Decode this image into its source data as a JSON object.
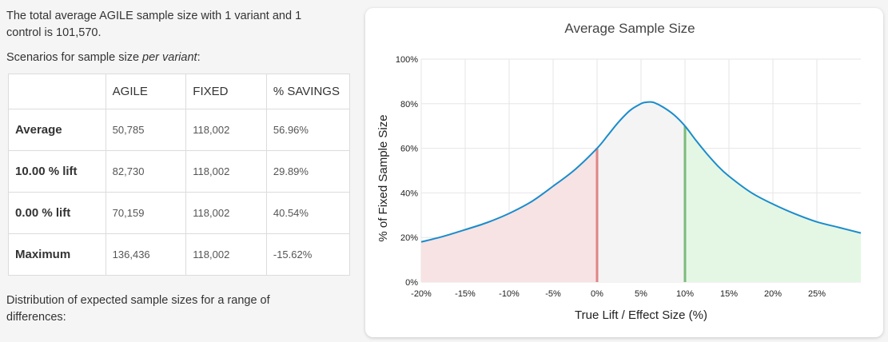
{
  "summary": {
    "text": "The total average AGILE sample size with 1 variant and 1 control is 101,570.",
    "scenarios_prefix": "Scenarios for sample size ",
    "scenarios_em": "per variant",
    "scenarios_suffix": ":"
  },
  "table": {
    "headers": [
      "",
      "AGILE",
      "FIXED",
      "% SAVINGS"
    ],
    "rows": [
      {
        "label": "Average",
        "agile": "50,785",
        "fixed": "118,002",
        "savings": "56.96%"
      },
      {
        "label": "10.00 % lift",
        "agile": "82,730",
        "fixed": "118,002",
        "savings": "29.89%"
      },
      {
        "label": "0.00 % lift",
        "agile": "70,159",
        "fixed": "118,002",
        "savings": "40.54%"
      },
      {
        "label": "Maximum",
        "agile": "136,436",
        "fixed": "118,002",
        "savings": "-15.62%"
      }
    ]
  },
  "distribution_text": "Distribution of expected sample sizes for a range of differences:",
  "chart_data": {
    "type": "area",
    "title": "Average Sample Size",
    "xlabel": "True Lift / Effect Size (%)",
    "ylabel": "% of Fixed Sample Size",
    "xlim": [
      -20,
      30
    ],
    "ylim": [
      0,
      100
    ],
    "x_ticks": [
      -20,
      -15,
      -10,
      -5,
      0,
      5,
      10,
      15,
      20,
      25
    ],
    "x_tick_labels": [
      "-20%",
      "-15%",
      "-10%",
      "-5%",
      "0%",
      "5%",
      "10%",
      "15%",
      "20%",
      "25%"
    ],
    "y_ticks": [
      0,
      20,
      40,
      60,
      80,
      100
    ],
    "y_tick_labels": [
      "0%",
      "20%",
      "40%",
      "60%",
      "80%",
      "100%"
    ],
    "grid": true,
    "series": [
      {
        "x": [
          -20,
          -17.5,
          -15,
          -12.5,
          -10,
          -7.5,
          -5,
          -2.5,
          0,
          1.25,
          2.5,
          3.75,
          5,
          5.5,
          6,
          6.5,
          7.5,
          8.75,
          10,
          11.25,
          12.5,
          13.75,
          15,
          17.5,
          20,
          22.5,
          25,
          27.5,
          30
        ],
        "y": [
          18,
          20.5,
          23.5,
          26.7,
          30.8,
          36,
          43,
          50.5,
          60,
          66,
          72,
          77,
          80,
          80.6,
          80.8,
          80.5,
          78.5,
          75,
          70,
          63.5,
          57.5,
          52,
          47.5,
          40.2,
          35,
          30.6,
          27,
          24.5,
          22
        ]
      }
    ],
    "regions": [
      {
        "from": -20,
        "to": 0,
        "fill": "#f7e3e3"
      },
      {
        "from": 0,
        "to": 10,
        "fill": "#f4f4f4"
      },
      {
        "from": 10,
        "to": 30,
        "fill": "#e4f7e4"
      }
    ],
    "markers": [
      {
        "x": 0,
        "y": 60,
        "color": "#e08585"
      },
      {
        "x": 10,
        "y": 70,
        "color": "#7cba7c"
      }
    ],
    "line_color": "#1a8ccc"
  }
}
